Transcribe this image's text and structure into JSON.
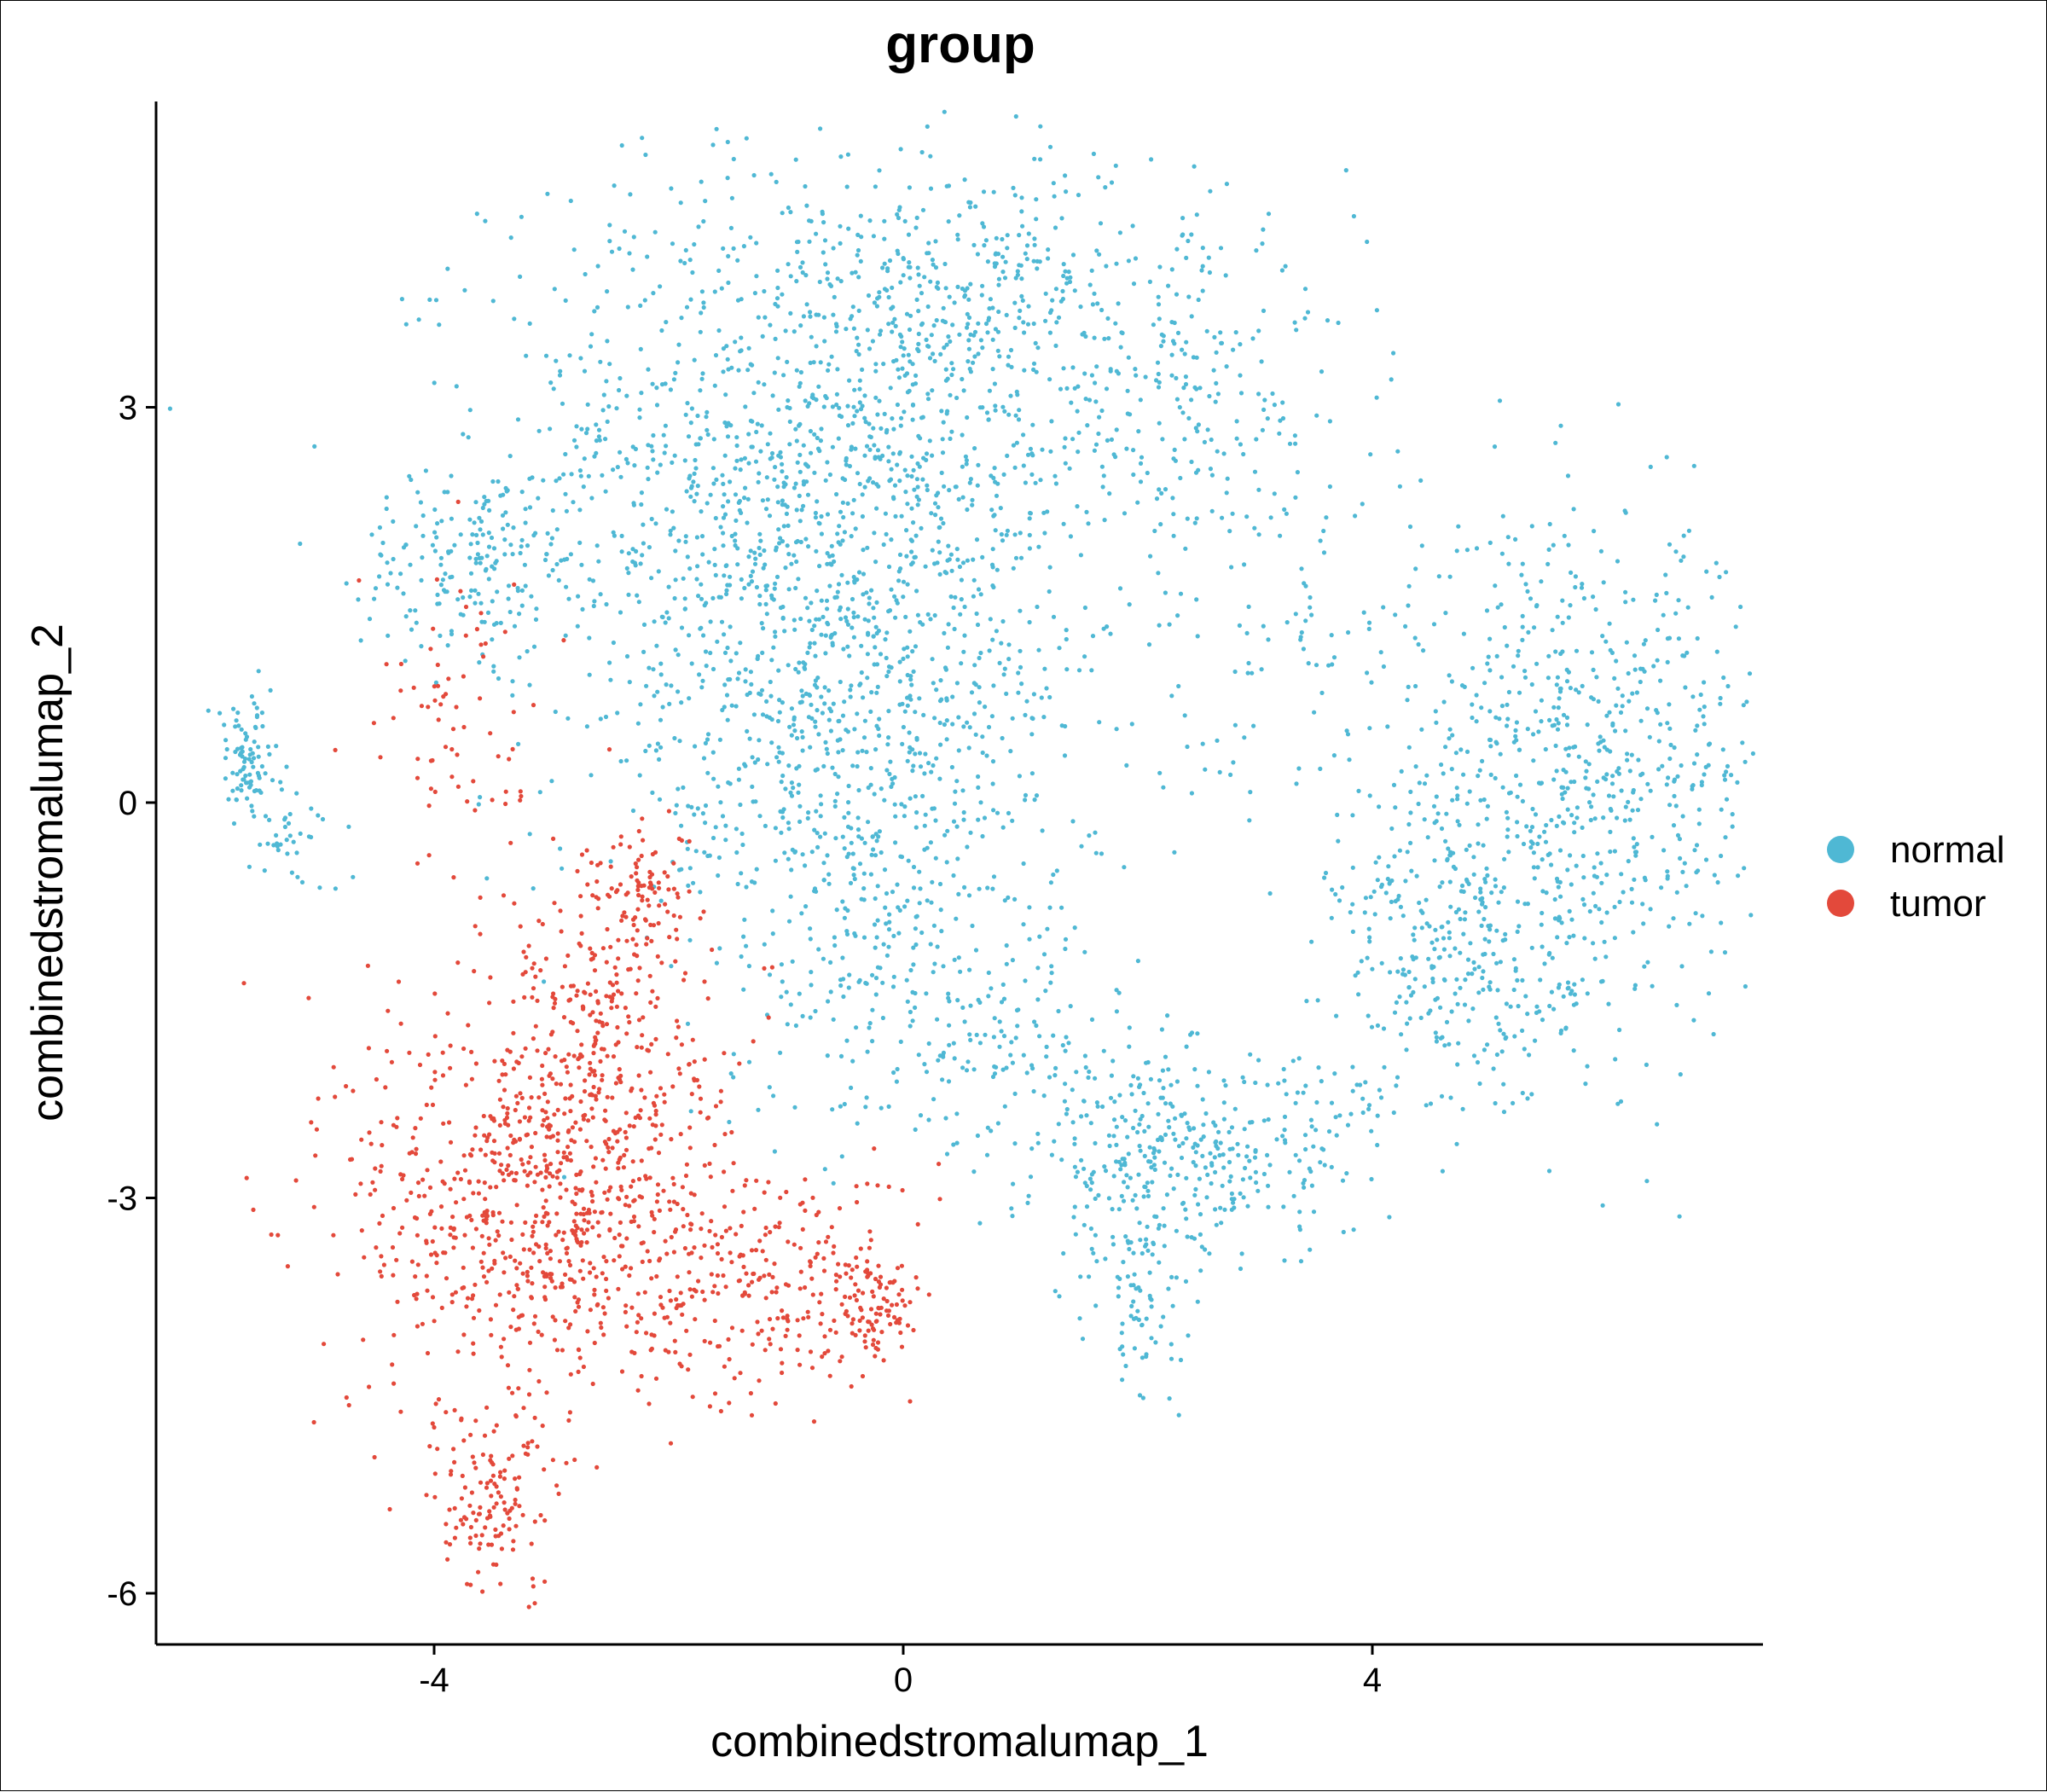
{
  "chart_data": {
    "type": "scatter",
    "title": "group",
    "xlabel": "combinedstromalumap_1",
    "ylabel": "combinedstromalumap_2",
    "xlim": [
      -6.4,
      7.4
    ],
    "ylim": [
      -6.4,
      5.4
    ],
    "xticks": [
      {
        "value": -4,
        "label": "-4"
      },
      {
        "value": 0,
        "label": "0"
      },
      {
        "value": 4,
        "label": "4"
      }
    ],
    "yticks": [
      {
        "value": -6,
        "label": "-6"
      },
      {
        "value": -3,
        "label": "-3"
      },
      {
        "value": 0,
        "label": "0"
      },
      {
        "value": 3,
        "label": "3"
      }
    ],
    "grid": false,
    "legend_position": "right",
    "series": [
      {
        "name": "normal",
        "color": "#4FB8D4",
        "clusters": [
          {
            "cx": -0.8,
            "cy": 2.4,
            "sx": 1.35,
            "sy": 1.25,
            "n": 1500
          },
          {
            "cx": -0.4,
            "cy": 0.3,
            "sx": 0.9,
            "sy": 0.9,
            "n": 500
          },
          {
            "cx": -0.2,
            "cy": -1.3,
            "sx": 0.6,
            "sy": 0.6,
            "n": 170
          },
          {
            "cx": -3.7,
            "cy": 1.8,
            "sx": 0.45,
            "sy": 0.35,
            "n": 150
          },
          {
            "cx": -5.6,
            "cy": 0.3,
            "sx": 0.15,
            "sy": 0.25,
            "n": 90
          },
          {
            "cx": -5.2,
            "cy": -0.3,
            "sx": 0.2,
            "sy": 0.2,
            "n": 35
          },
          {
            "cx": 0.7,
            "cy": 3.8,
            "sx": 0.9,
            "sy": 0.55,
            "n": 250
          },
          {
            "cx": 2.5,
            "cy": 3.1,
            "sx": 0.7,
            "sy": 0.6,
            "n": 200
          },
          {
            "cx": 5.8,
            "cy": 0.2,
            "sx": 0.8,
            "sy": 0.95,
            "n": 650
          },
          {
            "cx": 4.7,
            "cy": -1.2,
            "sx": 0.5,
            "sy": 0.6,
            "n": 280
          },
          {
            "cx": 2.1,
            "cy": -2.8,
            "sx": 0.45,
            "sy": 0.5,
            "n": 280
          },
          {
            "cx": 3.2,
            "cy": -2.6,
            "sx": 0.5,
            "sy": 0.35,
            "n": 120
          },
          {
            "cx": 2.0,
            "cy": -3.9,
            "sx": 0.15,
            "sy": 0.3,
            "n": 50
          },
          {
            "cx": 1.0,
            "cy": -1.8,
            "sx": 0.4,
            "sy": 0.5,
            "n": 100
          },
          {
            "cx": 3.8,
            "cy": 1.0,
            "sx": 1.1,
            "sy": 0.8,
            "n": 120
          }
        ]
      },
      {
        "name": "tumor",
        "color": "#E3493B",
        "clusters": [
          {
            "cx": -3.2,
            "cy": -3.1,
            "sx": 0.75,
            "sy": 0.8,
            "n": 700
          },
          {
            "cx": -2.6,
            "cy": -1.8,
            "sx": 0.5,
            "sy": 0.75,
            "n": 350
          },
          {
            "cx": -2.2,
            "cy": -0.6,
            "sx": 0.2,
            "sy": 0.2,
            "n": 60
          },
          {
            "cx": -3.5,
            "cy": -5.3,
            "sx": 0.3,
            "sy": 0.35,
            "n": 130
          },
          {
            "cx": -1.1,
            "cy": -3.7,
            "sx": 0.6,
            "sy": 0.45,
            "n": 260
          },
          {
            "cx": -0.2,
            "cy": -3.8,
            "sx": 0.2,
            "sy": 0.2,
            "n": 70
          },
          {
            "cx": -3.8,
            "cy": 0.6,
            "sx": 0.35,
            "sy": 0.6,
            "n": 70
          }
        ]
      }
    ]
  }
}
